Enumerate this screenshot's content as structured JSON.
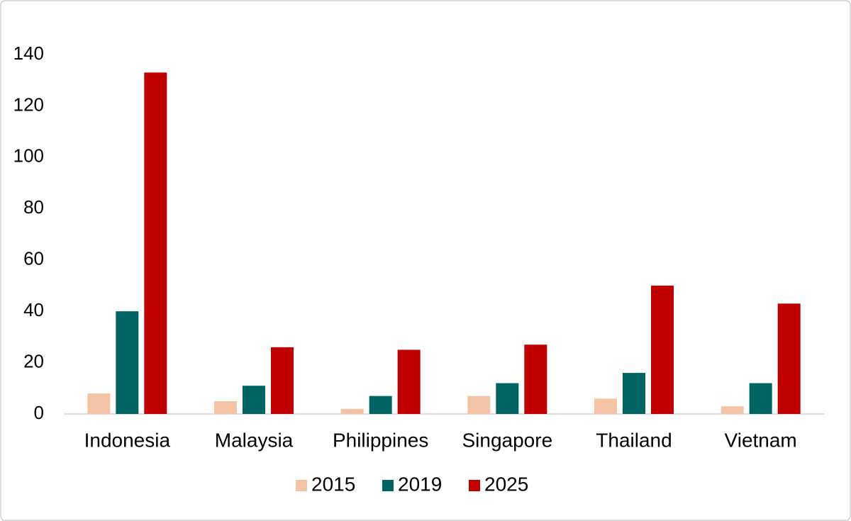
{
  "chart_data": {
    "type": "bar",
    "categories": [
      "Indonesia",
      "Malaysia",
      "Philippines",
      "Singapore",
      "Thailand",
      "Vietnam"
    ],
    "series": [
      {
        "name": "2015",
        "color": "#f4c2a4",
        "values": [
          8,
          5,
          2,
          7,
          6,
          3
        ]
      },
      {
        "name": "2019",
        "color": "#006462",
        "values": [
          40,
          11,
          7,
          12,
          16,
          12
        ]
      },
      {
        "name": "2025",
        "color": "#c00000",
        "values": [
          133,
          26,
          25,
          27,
          50,
          43
        ]
      }
    ],
    "ylim": [
      0,
      140
    ],
    "yticks": [
      0,
      20,
      40,
      60,
      80,
      100,
      120,
      140
    ],
    "grid": false,
    "legend": "bottom"
  }
}
